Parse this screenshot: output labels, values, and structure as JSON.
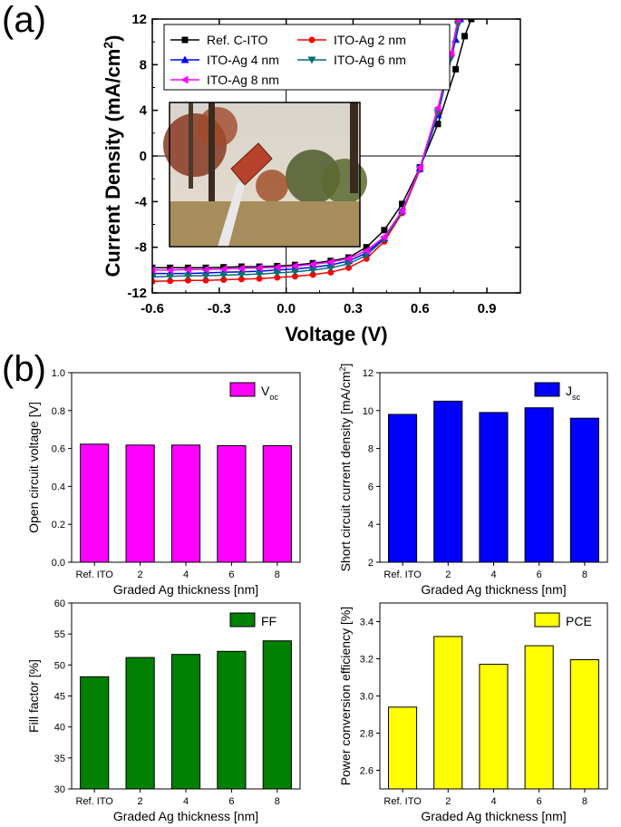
{
  "panel_a_label": "(a)",
  "panel_b_label": "(b)",
  "chart_data": [
    {
      "type": "line",
      "panel": "a",
      "xlabel": "Voltage (V)",
      "ylabel": "Current Density (mA/cm2)",
      "ylabel_main": "Current Density (mA/cm",
      "ylabel_sup": "2",
      "ylabel_close": ")",
      "xlim": [
        -0.6,
        1.05
      ],
      "ylim": [
        -12,
        12
      ],
      "xticks": [
        "-0.6",
        "-0.3",
        "0.0",
        "0.3",
        "0.6",
        "0.9"
      ],
      "yticks": [
        "-12",
        "-8",
        "-4",
        "0",
        "4",
        "8",
        "12"
      ],
      "inset_image": "photograph of flexible device held by tweezers outdoors",
      "series": [
        {
          "name": "Ref. C-ITO",
          "color": "#000000",
          "marker": "square",
          "x": [
            -0.6,
            -0.52,
            -0.44,
            -0.36,
            -0.28,
            -0.2,
            -0.12,
            -0.04,
            0.04,
            0.12,
            0.2,
            0.28,
            0.36,
            0.44,
            0.52,
            0.6,
            0.68,
            0.76,
            0.8,
            0.83
          ],
          "y": [
            -9.8,
            -9.8,
            -9.8,
            -9.8,
            -9.75,
            -9.7,
            -9.7,
            -9.65,
            -9.55,
            -9.4,
            -9.2,
            -8.9,
            -8.0,
            -6.5,
            -4.2,
            -1.0,
            2.8,
            7.6,
            10.5,
            12
          ]
        },
        {
          "name": "ITO-Ag 2 nm",
          "color": "#ff0000",
          "marker": "circle",
          "x": [
            -0.6,
            -0.52,
            -0.44,
            -0.36,
            -0.28,
            -0.2,
            -0.12,
            -0.04,
            0.04,
            0.12,
            0.2,
            0.28,
            0.36,
            0.44,
            0.52,
            0.6,
            0.68,
            0.74,
            0.77
          ],
          "y": [
            -11.0,
            -10.95,
            -10.9,
            -10.9,
            -10.85,
            -10.8,
            -10.75,
            -10.65,
            -10.55,
            -10.4,
            -10.2,
            -9.8,
            -9.0,
            -7.5,
            -5.0,
            -1.2,
            3.8,
            8.8,
            11.8
          ]
        },
        {
          "name": "ITO-Ag 4 nm",
          "color": "#0000ff",
          "marker": "triangle-up",
          "x": [
            -0.6,
            -0.52,
            -0.44,
            -0.36,
            -0.28,
            -0.2,
            -0.12,
            -0.04,
            0.04,
            0.12,
            0.2,
            0.28,
            0.36,
            0.44,
            0.52,
            0.6,
            0.68,
            0.76,
            0.78
          ],
          "y": [
            -10.3,
            -10.3,
            -10.3,
            -10.25,
            -10.2,
            -10.15,
            -10.1,
            -10.0,
            -9.9,
            -9.75,
            -9.55,
            -9.2,
            -8.5,
            -7.2,
            -4.8,
            -1.1,
            3.6,
            10.2,
            12
          ]
        },
        {
          "name": "ITO-Ag 6 nm",
          "color": "#007070",
          "marker": "triangle-down",
          "x": [
            -0.6,
            -0.52,
            -0.44,
            -0.36,
            -0.28,
            -0.2,
            -0.12,
            -0.04,
            0.04,
            0.12,
            0.2,
            0.28,
            0.36,
            0.44,
            0.52,
            0.6,
            0.68,
            0.74,
            0.77
          ],
          "y": [
            -10.6,
            -10.55,
            -10.5,
            -10.5,
            -10.45,
            -10.4,
            -10.35,
            -10.25,
            -10.15,
            -10.0,
            -9.8,
            -9.45,
            -8.7,
            -7.3,
            -4.9,
            -1.1,
            3.8,
            8.6,
            11.5
          ]
        },
        {
          "name": "ITO-Ag 8 nm",
          "color": "#ff00ff",
          "marker": "triangle-left",
          "x": [
            -0.6,
            -0.52,
            -0.44,
            -0.36,
            -0.28,
            -0.2,
            -0.12,
            -0.04,
            0.04,
            0.12,
            0.2,
            0.28,
            0.36,
            0.44,
            0.52,
            0.6,
            0.68,
            0.74,
            0.77
          ],
          "y": [
            -10.0,
            -10.0,
            -9.95,
            -9.95,
            -9.9,
            -9.85,
            -9.8,
            -9.75,
            -9.65,
            -9.5,
            -9.3,
            -9.0,
            -8.3,
            -7.1,
            -4.8,
            -1.0,
            4.2,
            9.0,
            12
          ]
        }
      ]
    },
    {
      "type": "bar",
      "panel": "b1",
      "categories": [
        "Ref. ITO",
        "2",
        "4",
        "6",
        "8"
      ],
      "values": [
        0.623,
        0.618,
        0.618,
        0.615,
        0.615
      ],
      "xlabel": "Graded Ag thickness [nm]",
      "ylabel": "Open circuit voltage [V]",
      "ylim": [
        0.0,
        1.0
      ],
      "yticks": [
        "0.0",
        "0.2",
        "0.4",
        "0.6",
        "0.8",
        "1.0"
      ],
      "legend_main": "V",
      "legend_sub": "oc",
      "color": "#ff00ff"
    },
    {
      "type": "bar",
      "panel": "b2",
      "categories": [
        "Ref. ITO",
        "2",
        "4",
        "6",
        "8"
      ],
      "values": [
        9.8,
        10.5,
        9.9,
        10.15,
        9.6
      ],
      "xlabel": "Graded Ag thickness [nm]",
      "ylabel": "Short circuit current density [mA/cm2]",
      "ylabel_main": "Short circuit current density [mA/cm",
      "ylabel_sup": "2",
      "ylabel_close": "]",
      "ylim": [
        2,
        12
      ],
      "yticks": [
        "2",
        "4",
        "6",
        "8",
        "10",
        "12"
      ],
      "legend_main": "J",
      "legend_sub": "sc",
      "color": "#0000ff"
    },
    {
      "type": "bar",
      "panel": "b3",
      "categories": [
        "Ref. ITO",
        "2",
        "4",
        "6",
        "8"
      ],
      "values": [
        48.1,
        51.2,
        51.7,
        52.2,
        53.9
      ],
      "xlabel": "Graded Ag thickness [nm]",
      "ylabel": "Fill factor [%]",
      "ylim": [
        30,
        60
      ],
      "yticks": [
        "30",
        "35",
        "40",
        "45",
        "50",
        "55",
        "60"
      ],
      "legend_main": "FF",
      "legend_sub": "",
      "color": "#008000"
    },
    {
      "type": "bar",
      "panel": "b4",
      "categories": [
        "Ref. ITO",
        "2",
        "4",
        "6",
        "8"
      ],
      "values": [
        2.94,
        3.32,
        3.17,
        3.27,
        3.195
      ],
      "xlabel": "Graded Ag thickness [nm]",
      "ylabel": "Power conversion efficiency [%]",
      "ylim": [
        2.5,
        3.5
      ],
      "yticks": [
        "2.6",
        "2.8",
        "3.0",
        "3.2",
        "3.4"
      ],
      "legend_main": "PCE",
      "legend_sub": "",
      "color": "#ffff00"
    }
  ]
}
